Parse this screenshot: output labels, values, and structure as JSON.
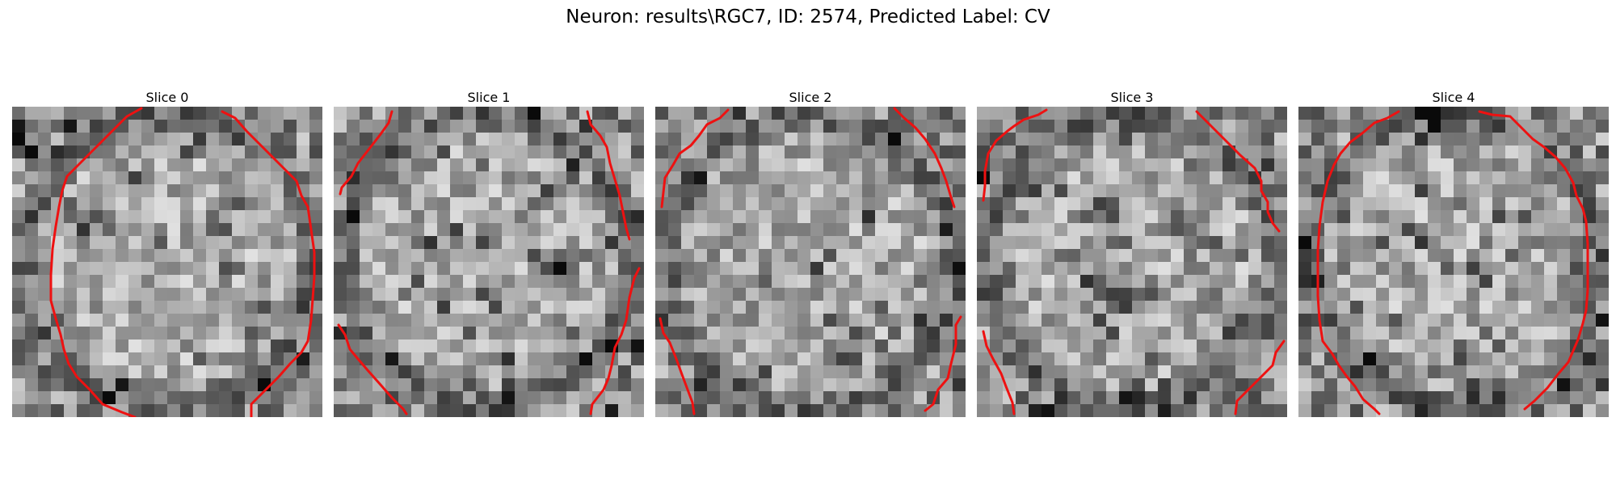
{
  "figure": {
    "title": "Neuron: results\\RGC7, ID: 2574, Predicted Label: CV"
  },
  "panels": [
    {
      "title": "Slice 0"
    },
    {
      "title": "Slice 1"
    },
    {
      "title": "Slice 2"
    },
    {
      "title": "Slice 3"
    },
    {
      "title": "Slice 4"
    }
  ],
  "colors": {
    "contour": "#ee1111",
    "background": "#ffffff"
  }
}
